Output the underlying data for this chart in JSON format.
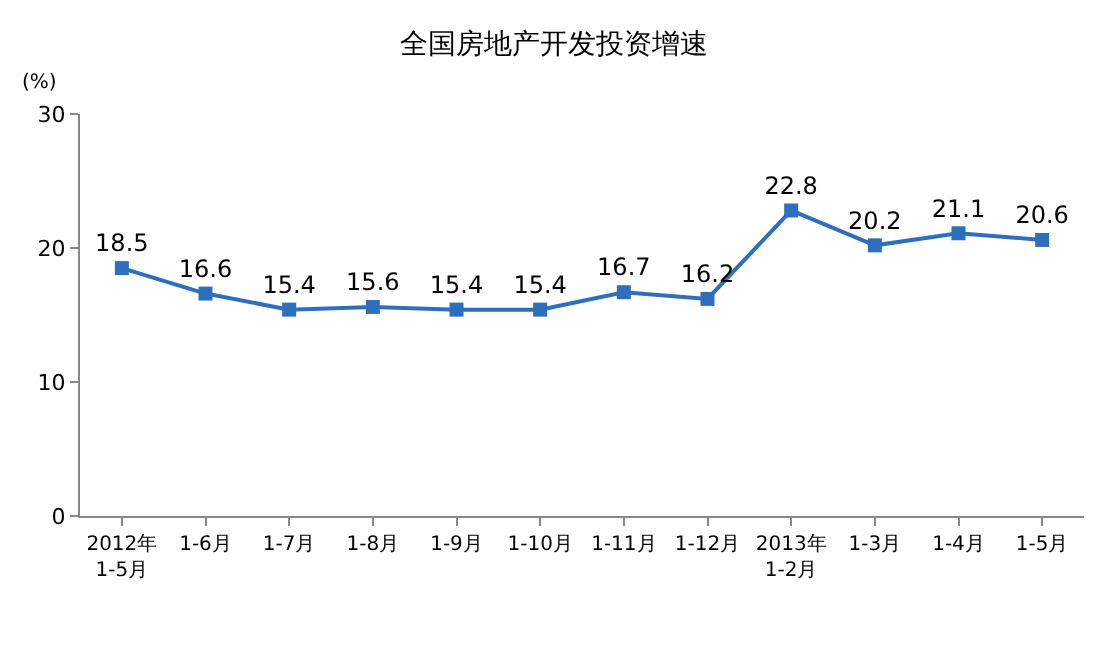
{
  "chart_data": {
    "type": "line",
    "title": "全国房地产开发投资增速",
    "ylabel": "(%)",
    "categories": [
      "2012年\n1-5月",
      "1-6月",
      "1-7月",
      "1-8月",
      "1-9月",
      "1-10月",
      "1-11月",
      "1-12月",
      "2013年\n1-2月",
      "1-3月",
      "1-4月",
      "1-5月"
    ],
    "series": [
      {
        "color": "#2e6fbd",
        "values": [
          18.5,
          16.6,
          15.4,
          15.6,
          15.4,
          15.4,
          16.7,
          16.2,
          22.8,
          20.2,
          21.1,
          20.6
        ]
      }
    ],
    "ylim": [
      0,
      30
    ],
    "yticks": [
      0,
      10,
      20,
      30
    ],
    "grid": false,
    "legend": false,
    "marker": "square",
    "line_style": "solid",
    "data_labels": true
  }
}
